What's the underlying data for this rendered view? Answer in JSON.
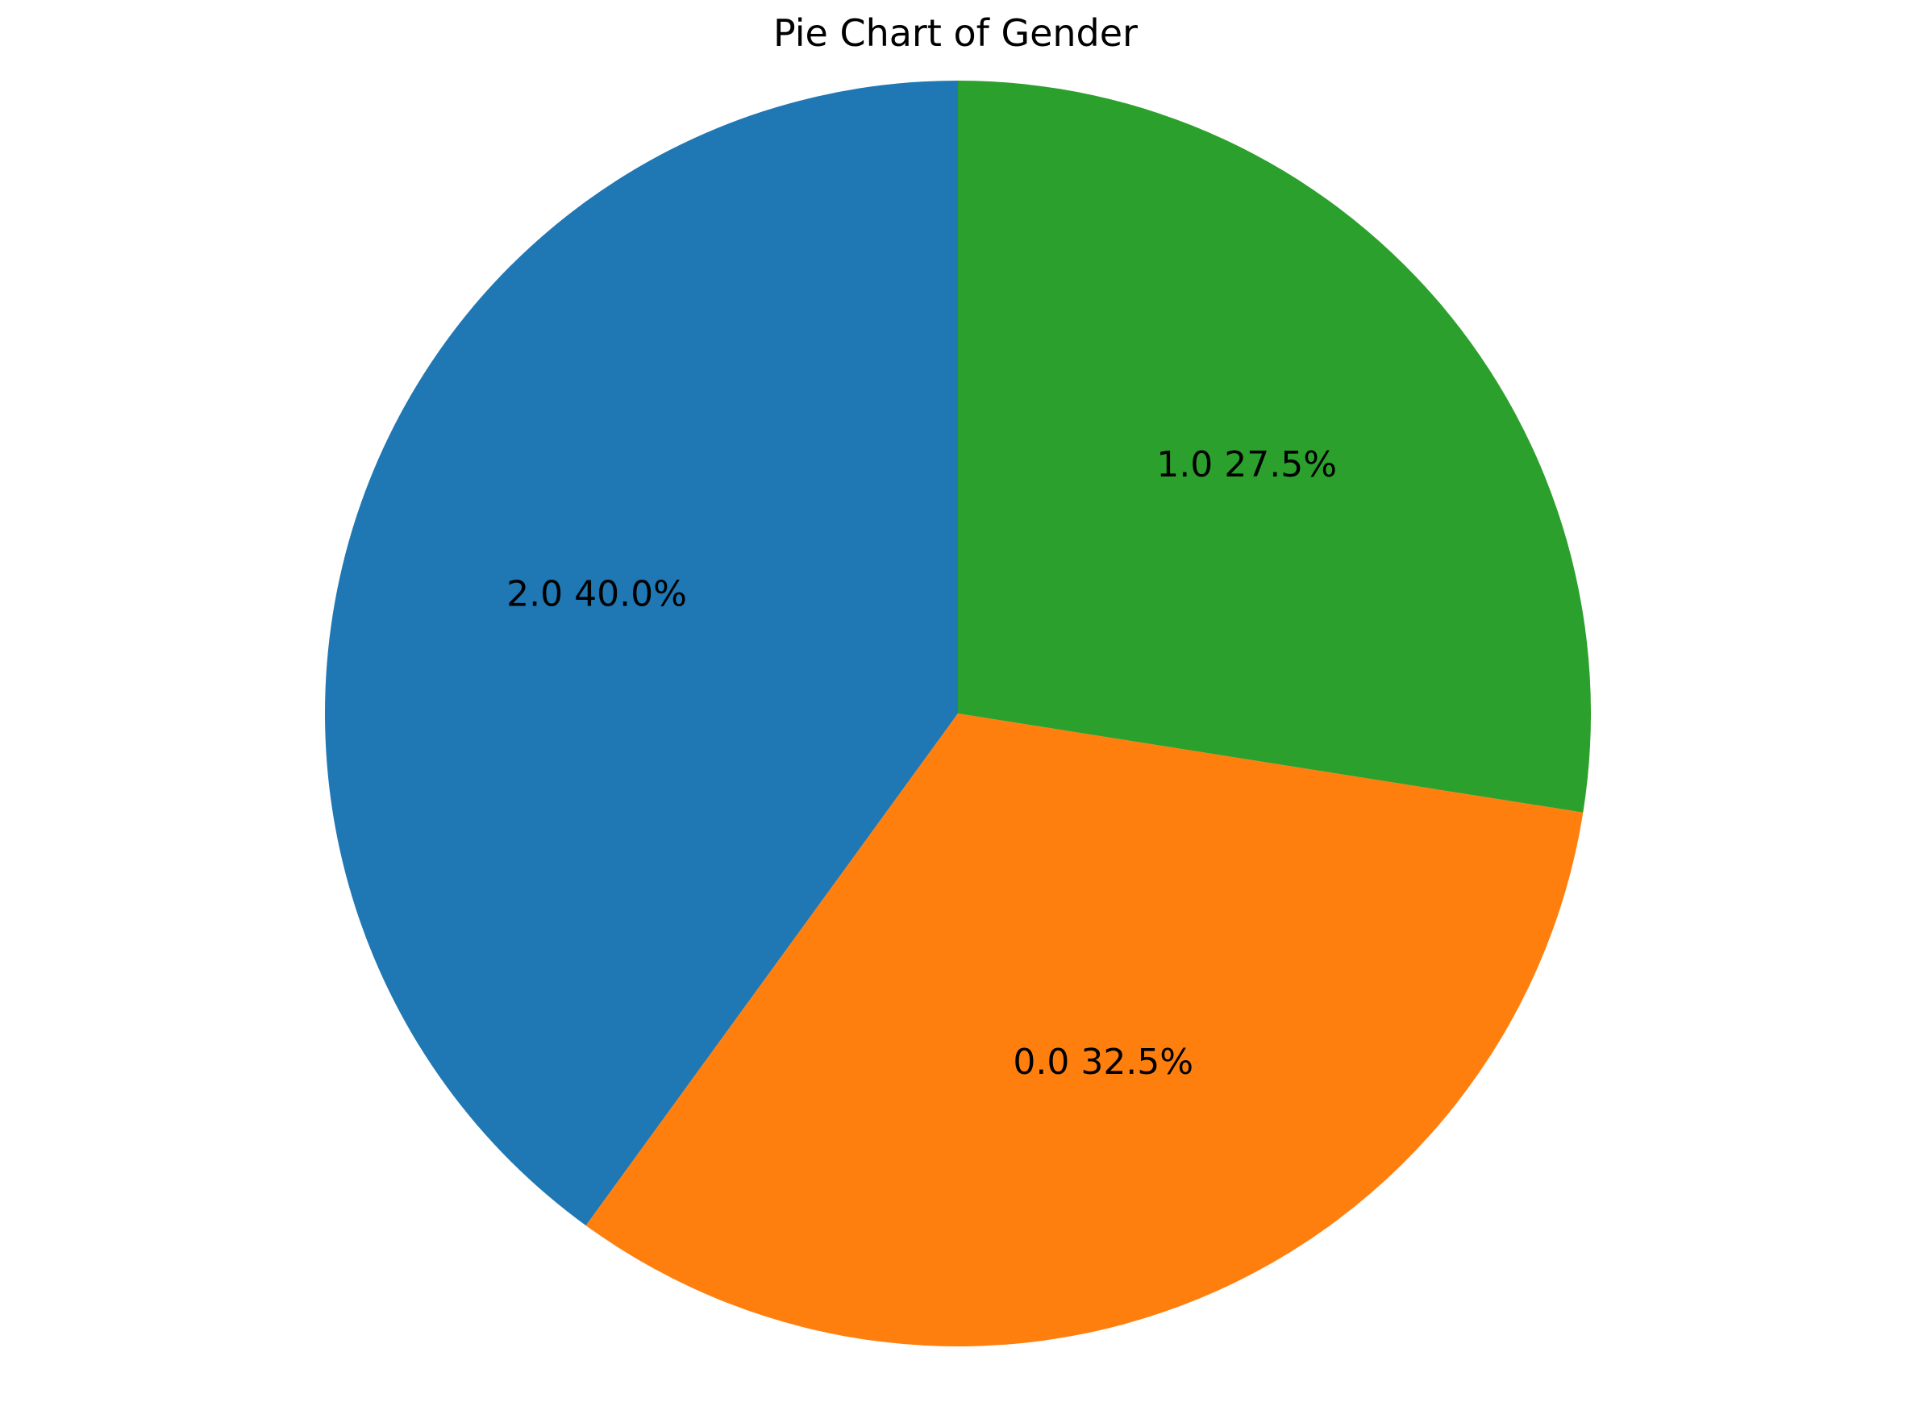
{
  "chart_data": {
    "type": "pie",
    "title": "Pie Chart of Gender",
    "start_angle_deg": 90,
    "direction": "counterclockwise",
    "slices": [
      {
        "label": "2.0",
        "percent": 40.0,
        "pct_text": "40.0%",
        "color": "#1f77b4"
      },
      {
        "label": "0.0",
        "percent": 32.5,
        "pct_text": "32.5%",
        "color": "#ff7f0e"
      },
      {
        "label": "1.0",
        "percent": 27.5,
        "pct_text": "27.5%",
        "color": "#2ca02c"
      }
    ]
  }
}
